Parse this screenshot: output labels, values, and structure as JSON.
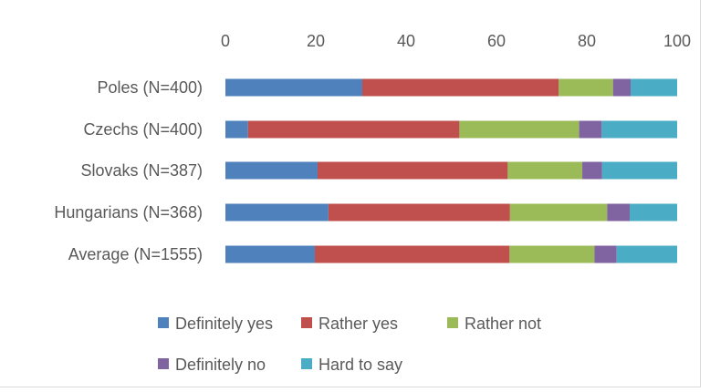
{
  "chart_data": {
    "type": "bar",
    "orientation": "horizontal",
    "stacked": true,
    "title": "",
    "xlabel": "",
    "ylabel": "",
    "xlim": [
      0,
      100
    ],
    "x_ticks": [
      0,
      20,
      40,
      60,
      80,
      100
    ],
    "x_axis_position": "top",
    "grid": false,
    "legend_position": "bottom",
    "categories": [
      "Poles (N=400)",
      "Czechs (N=400)",
      "Slovaks (N=387)",
      "Hungarians (N=368)",
      "Average (N=1555)"
    ],
    "series": [
      {
        "name": "Definitely yes",
        "color": "#4f81bd",
        "values": [
          30.3,
          5.0,
          20.4,
          22.8,
          19.8
        ]
      },
      {
        "name": "Rather yes",
        "color": "#c0504d",
        "values": [
          43.5,
          46.8,
          42.1,
          40.2,
          43.1
        ]
      },
      {
        "name": "Rather not",
        "color": "#9bbb59",
        "values": [
          12.0,
          26.5,
          16.5,
          21.5,
          18.8
        ]
      },
      {
        "name": "Definitely no",
        "color": "#8064a2",
        "values": [
          3.9,
          5.0,
          4.4,
          5.0,
          4.9
        ]
      },
      {
        "name": "Hard to say",
        "color": "#4bacc6",
        "values": [
          10.3,
          16.7,
          16.6,
          10.5,
          13.4
        ]
      }
    ]
  }
}
